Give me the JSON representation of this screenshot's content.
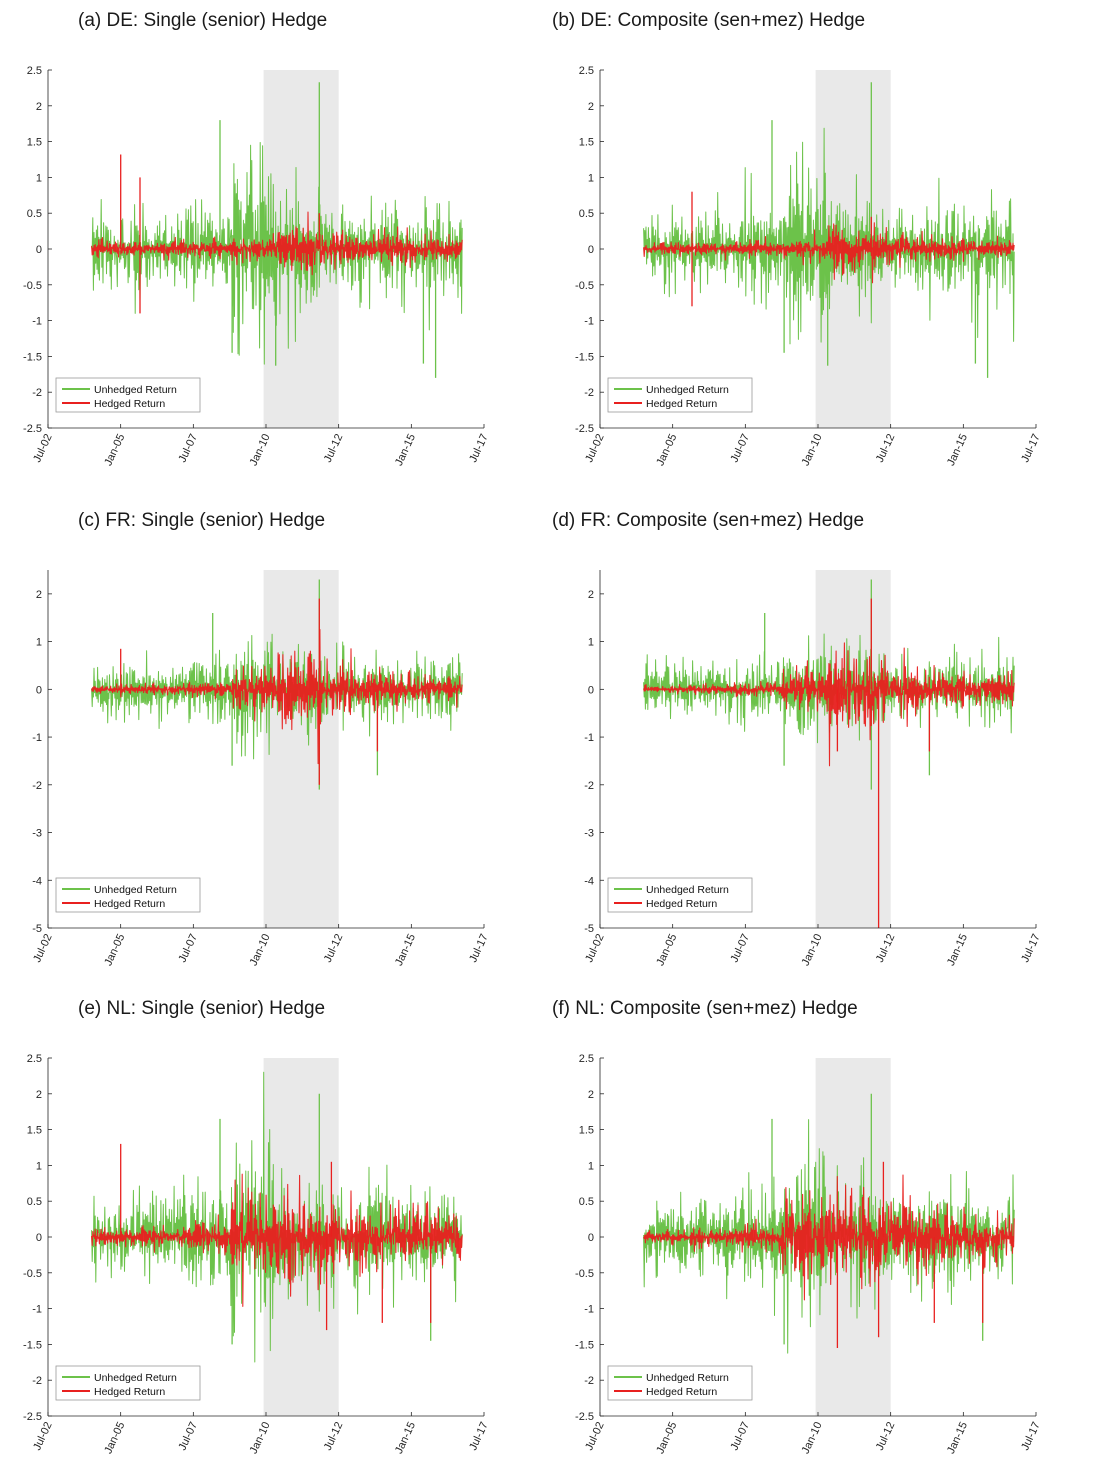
{
  "colors": {
    "unhedged": "#6cc24a",
    "hedged": "#e8201f",
    "shade": "#e9e9e9",
    "axis": "#262626"
  },
  "chart_data": [
    {
      "id": "a",
      "type": "line",
      "title": "(a) DE: Single (senior) Hedge",
      "x_ticks": [
        "Jul-02",
        "Jan-05",
        "Jul-07",
        "Jan-10",
        "Jul-12",
        "Jan-15",
        "Jul-17"
      ],
      "y_ticks": [
        "2.5",
        "2",
        "1.5",
        "1",
        "0.5",
        "0",
        "-0.5",
        "-1",
        "-1.5",
        "-2",
        "-2.5"
      ],
      "ylim": [
        -2.5,
        2.5
      ],
      "xlim": [
        "2002-07",
        "2017-07"
      ],
      "data_range": [
        "2004-01",
        "2016-10"
      ],
      "shaded_period": [
        "2009-12",
        "2012-07"
      ],
      "legend": {
        "position": "lower-left",
        "entries": [
          "Unhedged Return",
          "Hedged Return"
        ]
      },
      "series": [
        {
          "name": "Unhedged Return",
          "typical_amplitude": [
            0.35,
            0.35,
            0.45,
            0.9,
            0.55,
            0.4,
            0.45,
            0.45
          ],
          "extremes": [
            [
              "2008-06",
              1.8
            ],
            [
              "2011-11",
              2.33
            ],
            [
              "2010-05",
              -1.63
            ],
            [
              "2015-06",
              -1.6
            ],
            [
              "2015-11",
              -1.8
            ],
            [
              "2008-11",
              -1.45
            ]
          ]
        },
        {
          "name": "Hedged Return",
          "typical_amplitude": [
            0.08,
            0.08,
            0.08,
            0.12,
            0.25,
            0.18,
            0.15,
            0.12
          ],
          "extremes": [
            [
              "2005-01",
              1.32
            ],
            [
              "2005-09",
              1.0
            ],
            [
              "2005-09",
              -0.9
            ],
            [
              "2011-11",
              0.5
            ]
          ]
        }
      ]
    },
    {
      "id": "b",
      "type": "line",
      "title": "(b) DE: Composite (sen+mez) Hedge",
      "x_ticks": [
        "Jul-02",
        "Jan-05",
        "Jul-07",
        "Jan-10",
        "Jul-12",
        "Jan-15",
        "Jul-17"
      ],
      "y_ticks": [
        "2.5",
        "2",
        "1.5",
        "1",
        "0.5",
        "0",
        "-0.5",
        "-1",
        "-1.5",
        "-2",
        "-2.5"
      ],
      "ylim": [
        -2.5,
        2.5
      ],
      "xlim": [
        "2002-07",
        "2017-07"
      ],
      "data_range": [
        "2004-01",
        "2016-10"
      ],
      "shaded_period": [
        "2009-12",
        "2012-07"
      ],
      "legend": {
        "position": "lower-left",
        "entries": [
          "Unhedged Return",
          "Hedged Return"
        ]
      },
      "series": [
        {
          "name": "Unhedged Return",
          "typical_amplitude": [
            0.35,
            0.35,
            0.45,
            0.9,
            0.55,
            0.4,
            0.45,
            0.45
          ],
          "extremes": [
            [
              "2008-06",
              1.8
            ],
            [
              "2011-11",
              2.33
            ],
            [
              "2010-05",
              -1.63
            ],
            [
              "2015-06",
              -1.6
            ],
            [
              "2015-11",
              -1.8
            ],
            [
              "2008-11",
              -1.45
            ]
          ]
        },
        {
          "name": "Hedged Return",
          "typical_amplitude": [
            0.06,
            0.06,
            0.07,
            0.12,
            0.22,
            0.15,
            0.12,
            0.1
          ],
          "extremes": [
            [
              "2005-09",
              0.8
            ],
            [
              "2005-09",
              -0.8
            ],
            [
              "2011-11",
              0.45
            ]
          ]
        }
      ]
    },
    {
      "id": "c",
      "type": "line",
      "title": "(c) FR: Single (senior) Hedge",
      "x_ticks": [
        "Jul-02",
        "Jan-05",
        "Jul-07",
        "Jan-10",
        "Jul-12",
        "Jan-15",
        "Jul-17"
      ],
      "y_ticks": [
        "2",
        "1",
        "0",
        "-1",
        "-2",
        "-3",
        "-4",
        "-5"
      ],
      "ylim": [
        -5,
        2.5
      ],
      "xlim": [
        "2002-07",
        "2017-07"
      ],
      "data_range": [
        "2004-01",
        "2016-10"
      ],
      "shaded_period": [
        "2009-12",
        "2012-07"
      ],
      "legend": {
        "position": "lower-left",
        "entries": [
          "Unhedged Return",
          "Hedged Return"
        ]
      },
      "series": [
        {
          "name": "Unhedged Return",
          "typical_amplitude": [
            0.4,
            0.4,
            0.5,
            0.8,
            0.6,
            0.45,
            0.45,
            0.5
          ],
          "extremes": [
            [
              "2008-03",
              1.6
            ],
            [
              "2011-11",
              2.3
            ],
            [
              "2011-11",
              -2.1
            ],
            [
              "2013-11",
              -1.8
            ],
            [
              "2008-11",
              -1.6
            ]
          ]
        },
        {
          "name": "Hedged Return",
          "typical_amplitude": [
            0.06,
            0.08,
            0.1,
            0.3,
            0.6,
            0.4,
            0.25,
            0.2
          ],
          "extremes": [
            [
              "2005-01",
              0.85
            ],
            [
              "2011-11",
              1.9
            ],
            [
              "2011-11",
              -2.0
            ],
            [
              "2013-11",
              -1.3
            ]
          ]
        }
      ]
    },
    {
      "id": "d",
      "type": "line",
      "title": "(d) FR: Composite (sen+mez) Hedge",
      "x_ticks": [
        "Jul-02",
        "Jan-05",
        "Jul-07",
        "Jan-10",
        "Jul-12",
        "Jan-15",
        "Jul-17"
      ],
      "y_ticks": [
        "2",
        "1",
        "0",
        "-1",
        "-2",
        "-3",
        "-4",
        "-5"
      ],
      "ylim": [
        -5,
        2.5
      ],
      "xlim": [
        "2002-07",
        "2017-07"
      ],
      "data_range": [
        "2004-01",
        "2016-10"
      ],
      "shaded_period": [
        "2009-12",
        "2012-07"
      ],
      "legend": {
        "position": "lower-left",
        "entries": [
          "Unhedged Return",
          "Hedged Return"
        ]
      },
      "series": [
        {
          "name": "Unhedged Return",
          "typical_amplitude": [
            0.4,
            0.4,
            0.5,
            0.8,
            0.6,
            0.45,
            0.45,
            0.5
          ],
          "extremes": [
            [
              "2008-03",
              1.6
            ],
            [
              "2011-11",
              2.3
            ],
            [
              "2011-11",
              -2.1
            ],
            [
              "2013-11",
              -1.8
            ],
            [
              "2008-11",
              -1.6
            ]
          ]
        },
        {
          "name": "Hedged Return",
          "typical_amplitude": [
            0.05,
            0.07,
            0.1,
            0.3,
            0.6,
            0.4,
            0.25,
            0.2
          ],
          "extremes": [
            [
              "2011-11",
              1.9
            ],
            [
              "2012-02",
              -5.0
            ],
            [
              "2010-09",
              -1.3
            ],
            [
              "2013-11",
              -1.3
            ]
          ]
        }
      ]
    },
    {
      "id": "e",
      "type": "line",
      "title": "(e) NL: Single (senior) Hedge",
      "x_ticks": [
        "Jul-02",
        "Jan-05",
        "Jul-07",
        "Jan-10",
        "Jul-12",
        "Jan-15",
        "Jul-17"
      ],
      "y_ticks": [
        "2.5",
        "2",
        "1.5",
        "1",
        "0.5",
        "0",
        "-0.5",
        "-1",
        "-1.5",
        "-2",
        "-2.5"
      ],
      "ylim": [
        -2.5,
        2.5
      ],
      "xlim": [
        "2002-07",
        "2017-07"
      ],
      "data_range": [
        "2004-01",
        "2016-10"
      ],
      "shaded_period": [
        "2009-12",
        "2012-07"
      ],
      "legend": {
        "position": "lower-left",
        "entries": [
          "Unhedged Return",
          "Hedged Return"
        ]
      },
      "series": [
        {
          "name": "Unhedged Return",
          "typical_amplitude": [
            0.35,
            0.35,
            0.5,
            0.9,
            0.6,
            0.45,
            0.5,
            0.45
          ],
          "extremes": [
            [
              "2008-06",
              1.65
            ],
            [
              "2011-11",
              2.0
            ],
            [
              "2008-11",
              -1.5
            ],
            [
              "2015-09",
              -1.45
            ]
          ]
        },
        {
          "name": "Hedged Return",
          "typical_amplitude": [
            0.08,
            0.1,
            0.15,
            0.45,
            0.4,
            0.35,
            0.3,
            0.25
          ],
          "extremes": [
            [
              "2005-01",
              1.3
            ],
            [
              "2012-04",
              1.05
            ],
            [
              "2012-02",
              -1.3
            ],
            [
              "2014-01",
              -1.2
            ],
            [
              "2015-09",
              -1.2
            ]
          ]
        }
      ]
    },
    {
      "id": "f",
      "type": "line",
      "title": "(f) NL: Composite (sen+mez) Hedge",
      "x_ticks": [
        "Jul-02",
        "Jan-05",
        "Jul-07",
        "Jan-10",
        "Jul-12",
        "Jan-15",
        "Jul-17"
      ],
      "y_ticks": [
        "2.5",
        "2",
        "1.5",
        "1",
        "0.5",
        "0",
        "-0.5",
        "-1",
        "-1.5",
        "-2",
        "-2.5"
      ],
      "ylim": [
        -2.5,
        2.5
      ],
      "xlim": [
        "2002-07",
        "2017-07"
      ],
      "data_range": [
        "2004-01",
        "2016-10"
      ],
      "shaded_period": [
        "2009-12",
        "2012-07"
      ],
      "legend": {
        "position": "lower-left",
        "entries": [
          "Unhedged Return",
          "Hedged Return"
        ]
      },
      "series": [
        {
          "name": "Unhedged Return",
          "typical_amplitude": [
            0.35,
            0.35,
            0.5,
            0.9,
            0.6,
            0.45,
            0.5,
            0.45
          ],
          "extremes": [
            [
              "2008-06",
              1.65
            ],
            [
              "2011-11",
              2.0
            ],
            [
              "2008-11",
              -1.5
            ],
            [
              "2015-09",
              -1.45
            ]
          ]
        },
        {
          "name": "Hedged Return",
          "typical_amplitude": [
            0.06,
            0.08,
            0.15,
            0.45,
            0.4,
            0.35,
            0.3,
            0.25
          ],
          "extremes": [
            [
              "2012-04",
              1.05
            ],
            [
              "2010-09",
              -1.55
            ],
            [
              "2012-02",
              -1.4
            ],
            [
              "2014-01",
              -1.2
            ],
            [
              "2015-09",
              -1.2
            ]
          ]
        }
      ]
    }
  ]
}
